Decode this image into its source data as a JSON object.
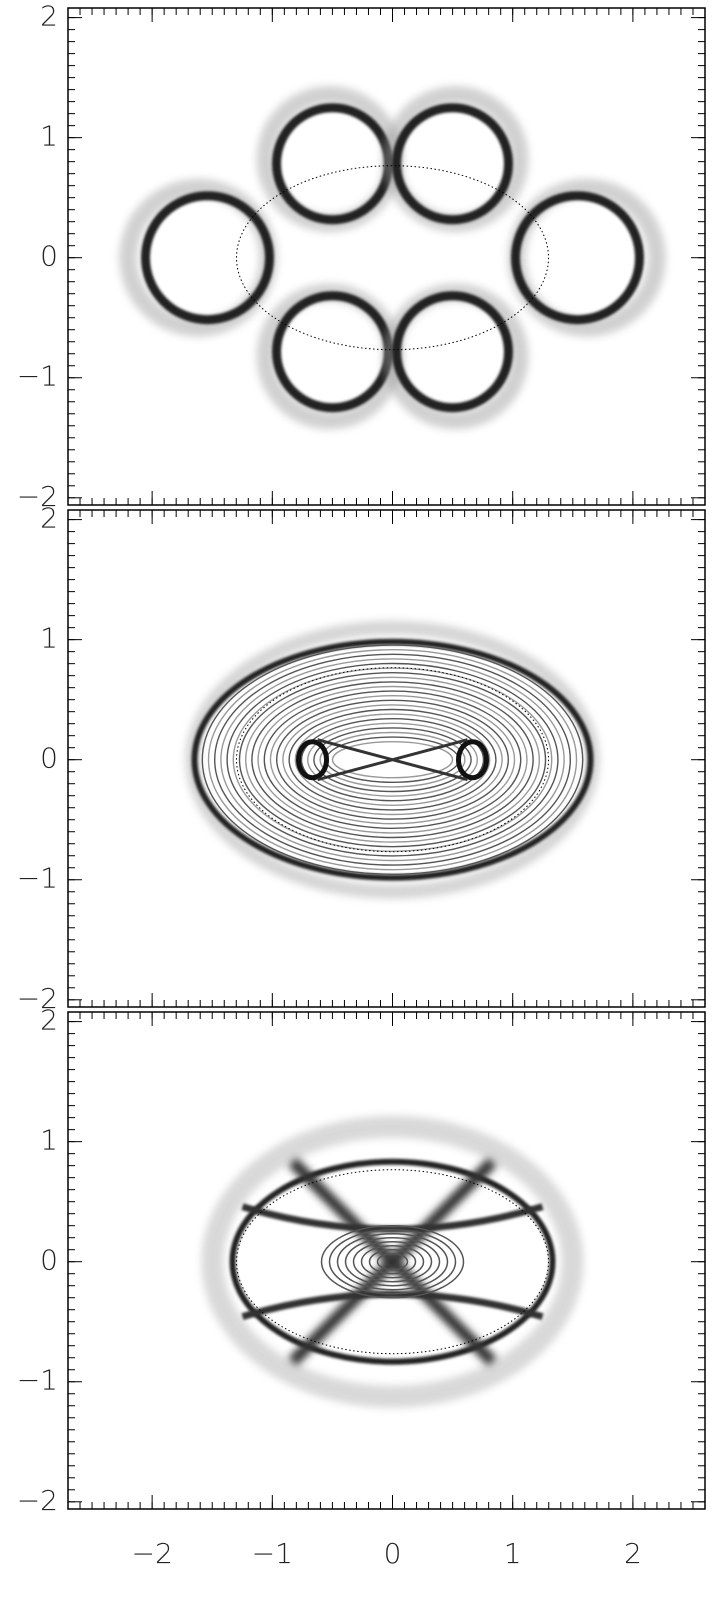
{
  "chart_data": [
    {
      "type": "image",
      "xlim": [
        -2.7,
        2.6
      ],
      "ylim": [
        -2.06,
        2.08
      ],
      "xticks": [
        -2,
        -1,
        0,
        1,
        2
      ],
      "yticks": [
        {
          "value": -2,
          "label": "−2"
        },
        {
          "value": -1,
          "label": "−1"
        },
        0,
        1,
        2
      ]
    },
    {
      "type": "image",
      "xlim": [
        -2.7,
        2.6
      ],
      "ylim": [
        -2.06,
        2.08
      ],
      "xticks": [
        -2,
        -1,
        0,
        1,
        2
      ],
      "yticks": [
        {
          "value": -2,
          "label": "−2"
        },
        {
          "value": -1,
          "label": "−1"
        },
        0,
        1,
        2
      ]
    },
    {
      "type": "image",
      "xlim": [
        -2.7,
        2.6
      ],
      "ylim": [
        -2.06,
        2.08
      ],
      "xticks": [
        {
          "value": -2,
          "label": "−2"
        },
        {
          "value": -1,
          "label": "−1"
        },
        0,
        1,
        2
      ],
      "yticks": [
        {
          "value": -2,
          "label": "−2"
        },
        {
          "value": -1,
          "label": "−1"
        },
        0,
        1,
        2
      ]
    }
  ]
}
